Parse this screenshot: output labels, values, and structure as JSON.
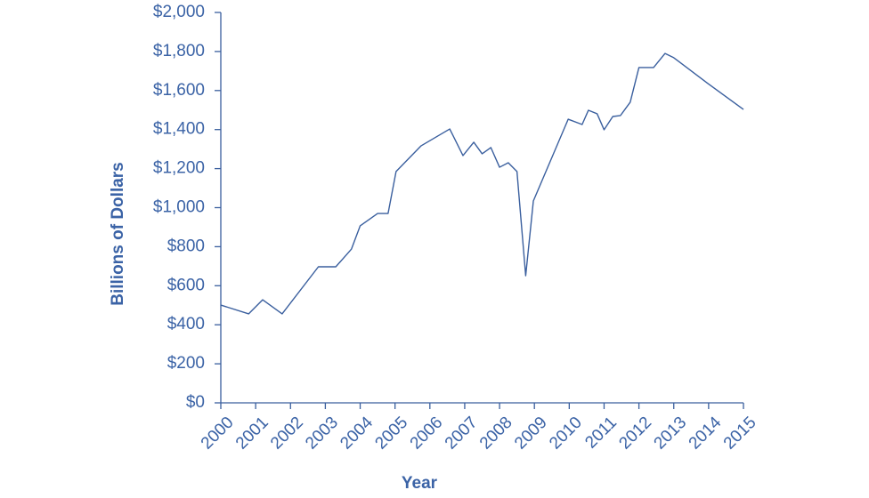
{
  "chart_data": {
    "type": "line",
    "y_label": "Billions of Dollars",
    "x_label": "Year",
    "color": "#3a5f9e",
    "x": [
      2000,
      2000.8,
      2001.2,
      2001.76,
      2002.8,
      2003.3,
      2003.75,
      2004,
      2004.5,
      2004.8,
      2005.03,
      2005.75,
      2006.57,
      2006.95,
      2007.26,
      2007.5,
      2007.75,
      2008,
      2008.25,
      2008.5,
      2008.75,
      2008.97,
      2009.97,
      2010.37,
      2010.55,
      2010.8,
      2011,
      2011.25,
      2011.47,
      2011.75,
      2012,
      2012.42,
      2012.75,
      2013,
      2013.98,
      2015
    ],
    "values": [
      501,
      456,
      528,
      456,
      697,
      697,
      788,
      907,
      970,
      970,
      1185,
      1317,
      1403,
      1267,
      1335,
      1276,
      1308,
      1207,
      1230,
      1185,
      651,
      1034,
      1453,
      1426,
      1499,
      1481,
      1399,
      1467,
      1472,
      1540,
      1718,
      1718,
      1790,
      1768,
      1636,
      1503
    ],
    "xlim": [
      2000,
      2015
    ],
    "xticks": [
      2000,
      2001,
      2002,
      2003,
      2004,
      2005,
      2006,
      2007,
      2008,
      2009,
      2010,
      2011,
      2012,
      2013,
      2014,
      2015
    ],
    "ylim": [
      0,
      2000
    ],
    "yticks": [
      {
        "value": 0,
        "label": "$0"
      },
      {
        "value": 200,
        "label": "$200"
      },
      {
        "value": 400,
        "label": "$400"
      },
      {
        "value": 600,
        "label": "$600"
      },
      {
        "value": 800,
        "label": "$800"
      },
      {
        "value": 1000,
        "label": "$1,000"
      },
      {
        "value": 1200,
        "label": "$1,200"
      },
      {
        "value": 1400,
        "label": "$1,400"
      },
      {
        "value": 1600,
        "label": "$1,600"
      },
      {
        "value": 1800,
        "label": "$1,800"
      },
      {
        "value": 2000,
        "label": "$2,000"
      }
    ],
    "grid": false
  }
}
